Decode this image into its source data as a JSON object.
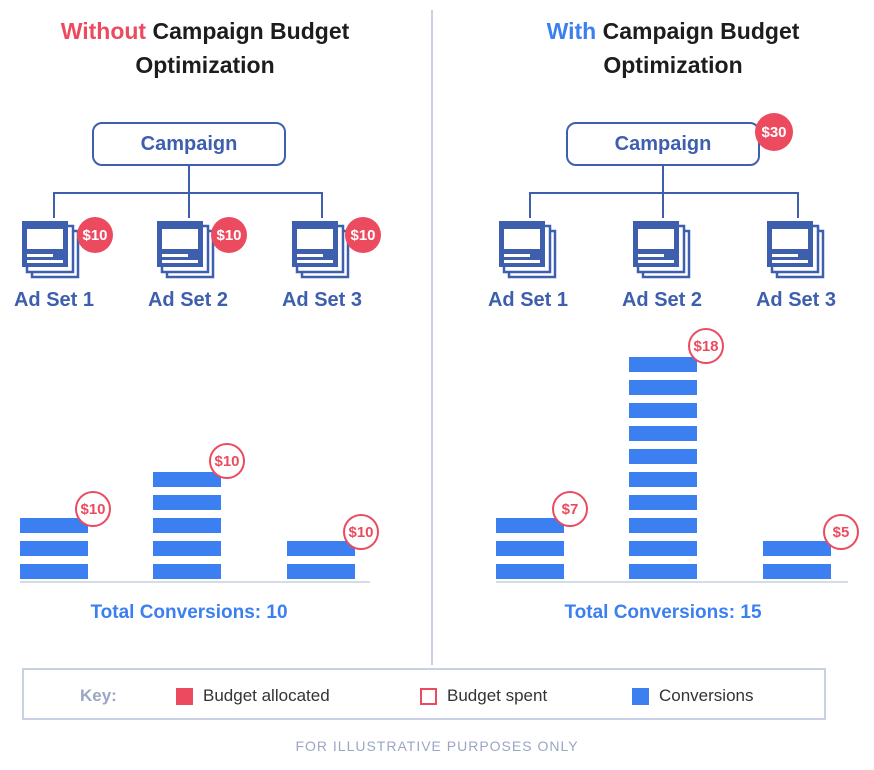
{
  "left": {
    "title_highlight": "Without",
    "title_rest_line1": "Campaign Budget",
    "title_line2": "Optimization",
    "campaign_label": "Campaign",
    "adsets": [
      {
        "label": "Ad Set 1",
        "budget": "$10",
        "spent": "$10",
        "conversions": 3
      },
      {
        "label": "Ad Set 2",
        "budget": "$10",
        "spent": "$10",
        "conversions": 5
      },
      {
        "label": "Ad Set 3",
        "budget": "$10",
        "spent": "$10",
        "conversions": 2
      }
    ],
    "total": "Total Conversions: 10"
  },
  "right": {
    "title_highlight": "With",
    "title_rest_line1": "Campaign Budget",
    "title_line2": "Optimization",
    "campaign_label": "Campaign",
    "campaign_budget": "$30",
    "adsets": [
      {
        "label": "Ad Set 1",
        "spent": "$7",
        "conversions": 3
      },
      {
        "label": "Ad Set 2",
        "spent": "$18",
        "conversions": 10
      },
      {
        "label": "Ad Set 3",
        "spent": "$5",
        "conversions": 2
      }
    ],
    "total": "Total Conversions: 15"
  },
  "key": {
    "title": "Key:",
    "budget_allocated": "Budget allocated",
    "budget_spent": "Budget spent",
    "conversions": "Conversions"
  },
  "footer": "FOR ILLUSTRATIVE PURPOSES ONLY",
  "colors": {
    "accent_red": "#ec4b5f",
    "accent_blue": "#3b7ff0",
    "navy": "#3e5fad",
    "divider": "#c9d0e3"
  }
}
